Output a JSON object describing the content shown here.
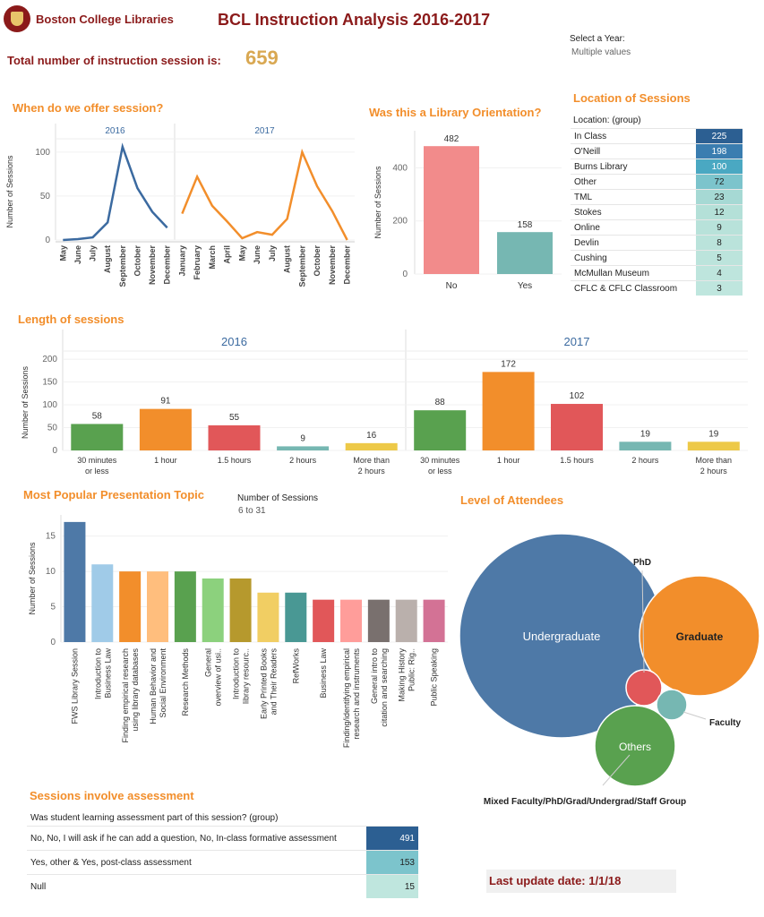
{
  "header": {
    "brand": "Boston College Libraries",
    "title": "BCL Instruction Analysis 2016-2017",
    "filter_label": "Select a Year:",
    "filter_value": "Multiple values",
    "total_label": "Total number of instruction session is:",
    "total_value": "659"
  },
  "sections": {
    "when": "When do we offer session?",
    "orientation": "Was this a Library Orientation?",
    "location": "Location of Sessions",
    "length": "Length of sessions",
    "topic": "Most Popular Presentation Topic",
    "level": "Level of Attendees",
    "assessment": "Sessions involve assessment"
  },
  "legend": {
    "label": "Number of Sessions",
    "range": "6 to 31"
  },
  "location": {
    "header": "Location: (group)",
    "rows": [
      {
        "label": "In Class",
        "value": 225,
        "color": "#2c5f92"
      },
      {
        "label": "O'Neill",
        "value": 198,
        "color": "#3a7db0"
      },
      {
        "label": "Burns Library",
        "value": 100,
        "color": "#4aa8c2"
      },
      {
        "label": "Other",
        "value": 72,
        "color": "#7cc4cc"
      },
      {
        "label": "TML",
        "value": 23,
        "color": "#a6d9d4"
      },
      {
        "label": "Stokes",
        "value": 12,
        "color": "#b4e0d8"
      },
      {
        "label": "Online",
        "value": 9,
        "color": "#b8e2da"
      },
      {
        "label": "Devlin",
        "value": 8,
        "color": "#bae3db"
      },
      {
        "label": "Cushing",
        "value": 5,
        "color": "#bce4dc"
      },
      {
        "label": "McMullan Museum",
        "value": 4,
        "color": "#bee5dd"
      },
      {
        "label": "CFLC & CFLC Classroom",
        "value": 3,
        "color": "#bfe6de"
      }
    ]
  },
  "assessment": {
    "header": "Was student learning assessment part of this session? (group)",
    "rows": [
      {
        "label": "No, No, I will ask if he can add a question, No, In-class formative assessment",
        "value": 491,
        "color": "#2c5f92"
      },
      {
        "label": "Yes, other & Yes, post-class assessment",
        "value": 153,
        "color": "#7cc4cc"
      },
      {
        "label": "Null",
        "value": 15,
        "color": "#bfe6de"
      }
    ]
  },
  "footer": {
    "update": "Last update date: 1/1/18"
  },
  "chart_data": [
    {
      "id": "when",
      "type": "line",
      "title": "When do we offer session?",
      "ylabel": "Number of Sessions",
      "ylim": [
        0,
        110
      ],
      "yticks": [
        0,
        50,
        100
      ],
      "panels": [
        {
          "year": "2016",
          "color": "#3b6aa0",
          "x": [
            "May",
            "June",
            "July",
            "August",
            "September",
            "October",
            "November",
            "December"
          ],
          "y": [
            0,
            1,
            3,
            20,
            106,
            59,
            32,
            14
          ]
        },
        {
          "year": "2017",
          "color": "#f28e2b",
          "x": [
            "January",
            "February",
            "March",
            "April",
            "May",
            "June",
            "July",
            "August",
            "September",
            "October",
            "November",
            "December"
          ],
          "y": [
            30,
            72,
            39,
            21,
            2,
            9,
            6,
            24,
            100,
            61,
            33,
            0
          ]
        }
      ]
    },
    {
      "id": "orientation",
      "type": "bar",
      "title": "Was this a Library Orientation?",
      "ylabel": "Number of Sessions",
      "ylim": [
        0,
        540
      ],
      "yticks": [
        0,
        200,
        400
      ],
      "categories": [
        "No",
        "Yes"
      ],
      "values": [
        482,
        158
      ],
      "colors": [
        "#f28b8b",
        "#76b7b2"
      ]
    },
    {
      "id": "length",
      "type": "bar",
      "title": "Length of sessions",
      "ylabel": "Number of Sessions",
      "ylim": [
        0,
        210
      ],
      "yticks": [
        0,
        50,
        100,
        150,
        200
      ],
      "categories": [
        "30 minutes or less",
        "1 hour",
        "1.5 hours",
        "2 hours",
        "More than 2 hours"
      ],
      "colors": [
        "#59a14f",
        "#f28e2b",
        "#e15759",
        "#76b7b2",
        "#edc948"
      ],
      "series": [
        {
          "name": "2016",
          "values": [
            58,
            91,
            55,
            9,
            16
          ]
        },
        {
          "name": "2017",
          "values": [
            88,
            172,
            102,
            19,
            19
          ]
        }
      ]
    },
    {
      "id": "topic",
      "type": "bar",
      "title": "Most Popular Presentation Topic",
      "ylabel": "Number of Sessions",
      "ylim": [
        0,
        18
      ],
      "yticks": [
        0,
        5,
        10,
        15
      ],
      "categories": [
        "FWS Library Session",
        "Introduction to Business Law",
        "Finding empirical research using library databases",
        "Human Behavior and Social Environment",
        "Research Methods",
        "General overview of usi..",
        "Introduction to library resourc..",
        "Early Printed Books and Their Readers",
        "RefWorks",
        "Business Law",
        "Finding/identifying empirical research and instruments",
        "General intro to citation and searching",
        "Making History Public: Rig..",
        "Public Speaking"
      ],
      "values": [
        17,
        11,
        10,
        10,
        10,
        9,
        9,
        7,
        7,
        6,
        6,
        6,
        6,
        6
      ],
      "colors": [
        "#4e79a7",
        "#a0cbe8",
        "#f28e2b",
        "#ffbe7d",
        "#59a14f",
        "#8cd17d",
        "#b6992d",
        "#f1ce63",
        "#499894",
        "#e15759",
        "#ff9d9a",
        "#79706e",
        "#bab0ac",
        "#d37295"
      ]
    },
    {
      "id": "level",
      "type": "bubble",
      "title": "Level of Attendees",
      "bubbles": [
        {
          "label": "Undergraduate",
          "color": "#4e79a7",
          "show_label": "inside"
        },
        {
          "label": "Graduate",
          "color": "#f28e2b",
          "show_label": "inside"
        },
        {
          "label": "Others",
          "color": "#59a14f",
          "show_label": "inside"
        },
        {
          "label": "PhD",
          "color": "#e15759",
          "show_label": "outside"
        },
        {
          "label": "Faculty",
          "color": "#76b7b2",
          "show_label": "outside"
        },
        {
          "label": "Mixed Faculty/PhD/Grad/Undergrad/Staff Group",
          "color": "#59a14f",
          "show_label": "outside"
        }
      ]
    }
  ]
}
